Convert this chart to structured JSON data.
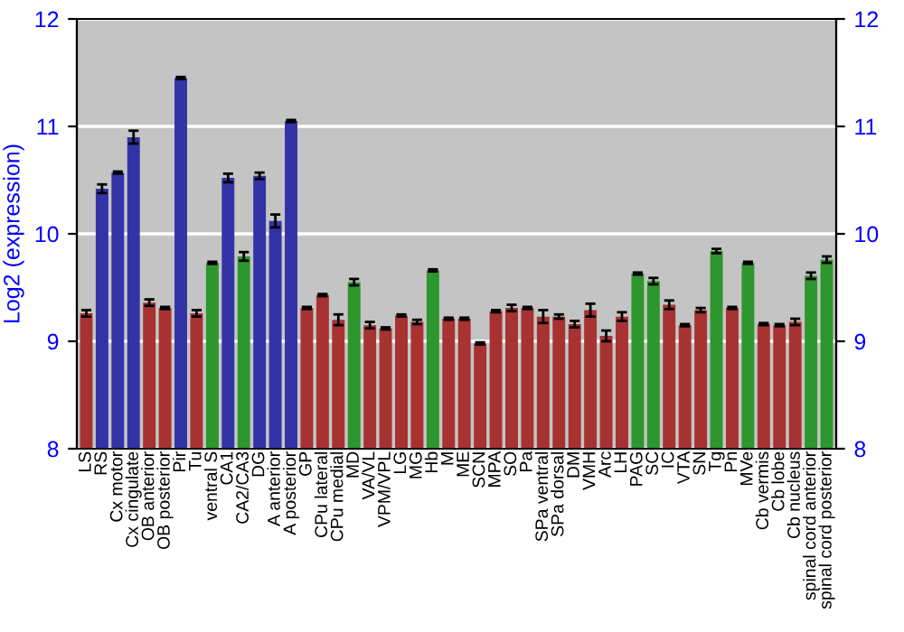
{
  "chart_data": {
    "type": "bar",
    "ylabel": "Log2 (expression)",
    "categories": [
      "LS",
      "RS",
      "Cx motor",
      "Cx cingulate",
      "OB anterior",
      "OB posterior",
      "Pir",
      "Tu",
      "ventral S",
      "CA1",
      "CA2/CA3",
      "DG",
      "A anterior",
      "A posterior",
      "GP",
      "CPu lateral",
      "CPu medial",
      "MD",
      "VA/VL",
      "VPM/VPL",
      "LG",
      "MG",
      "Hb",
      "M",
      "ME",
      "SCN",
      "MPA",
      "SO",
      "Pa",
      "SPa ventral",
      "SPa dorsal",
      "DM",
      "VMH",
      "Arc",
      "LH",
      "PAG",
      "SC",
      "IC",
      "VTA",
      "SN",
      "Tg",
      "Pn",
      "MVe",
      "Cb vermis",
      "Cb lobe",
      "Cb nucleus",
      "spinal cord anterior",
      "spinal cord posterior"
    ],
    "values": [
      9.26,
      10.42,
      10.57,
      10.9,
      9.36,
      9.31,
      11.45,
      9.26,
      9.73,
      10.52,
      9.79,
      10.54,
      10.12,
      11.05,
      9.31,
      9.43,
      9.2,
      9.55,
      9.15,
      9.12,
      9.24,
      9.18,
      9.66,
      9.21,
      9.21,
      8.98,
      9.28,
      9.31,
      9.31,
      9.23,
      9.23,
      9.16,
      9.29,
      9.05,
      9.23,
      9.63,
      9.56,
      9.34,
      9.15,
      9.29,
      9.84,
      9.31,
      9.73,
      9.16,
      9.15,
      9.18,
      9.61,
      9.76
    ],
    "errors": [
      0.03,
      0.04,
      0.01,
      0.06,
      0.03,
      0.01,
      0.01,
      0.03,
      0.01,
      0.04,
      0.04,
      0.03,
      0.06,
      0.01,
      0.01,
      0.01,
      0.05,
      0.03,
      0.03,
      0.01,
      0.01,
      0.02,
      0.01,
      0.01,
      0.01,
      0.01,
      0.01,
      0.03,
      0.01,
      0.06,
      0.02,
      0.03,
      0.06,
      0.05,
      0.04,
      0.01,
      0.03,
      0.04,
      0.01,
      0.02,
      0.02,
      0.01,
      0.01,
      0.01,
      0.01,
      0.03,
      0.03,
      0.03
    ],
    "colors": [
      "#a83232",
      "#3333a8",
      "#3333a8",
      "#3333a8",
      "#a83232",
      "#a83232",
      "#3333a8",
      "#a83232",
      "#2e962e",
      "#3333a8",
      "#2e962e",
      "#3333a8",
      "#3333a8",
      "#3333a8",
      "#a83232",
      "#a83232",
      "#a83232",
      "#2e962e",
      "#a83232",
      "#a83232",
      "#a83232",
      "#a83232",
      "#2e962e",
      "#a83232",
      "#a83232",
      "#a83232",
      "#a83232",
      "#a83232",
      "#a83232",
      "#a83232",
      "#a83232",
      "#a83232",
      "#a83232",
      "#a83232",
      "#a83232",
      "#2e962e",
      "#2e962e",
      "#a83232",
      "#a83232",
      "#a83232",
      "#2e962e",
      "#a83232",
      "#2e962e",
      "#a83232",
      "#a83232",
      "#a83232",
      "#2e962e",
      "#2e962e"
    ],
    "ylim": [
      8,
      12
    ],
    "yticks": [
      8,
      9,
      10,
      11,
      12
    ],
    "y2lim": [
      8,
      12
    ],
    "y2ticks": [
      8,
      9,
      10,
      11,
      12
    ],
    "grid": "y"
  }
}
